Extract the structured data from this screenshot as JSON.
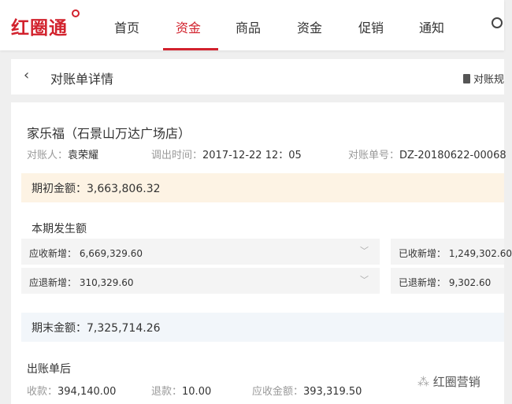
{
  "nav": {
    "logo": "红圈通",
    "tabs": [
      "首页",
      "资金",
      "商品",
      "资金",
      "促销",
      "通知"
    ],
    "active_index": 1,
    "accent": "#d2222d"
  },
  "header": {
    "back": "‹",
    "title": "对账单详情",
    "right_action": "对账规"
  },
  "detail": {
    "store": "家乐福（石景山万达广场店）",
    "reconciler_label": "对账人：",
    "reconciler": "袁荣耀",
    "time_label": "调出时间：",
    "time": "2017-12-22  12：05",
    "bill_no_label": "对账单号：",
    "bill_no": "DZ-20180622-00068",
    "opening": "期初金额：3,663,806.32",
    "period_title": "本期发生额",
    "receivable_add": "应收新增： 6,669,329.60",
    "received_add": "已收新增： 1,249,302.60",
    "refund_due_add": "应退新增： 310,329.60",
    "refunded_add": "已退新增： 9,302.60",
    "closing": "期末金额：7,325,714.26",
    "after_title": "出账单后",
    "collect_label": "收款：",
    "collect": "394,140.00",
    "refund_label": "退款：",
    "refund": "10.00",
    "receivable_label": "应收金额：",
    "receivable": "393,319.50"
  },
  "watermark": "红圈营销"
}
